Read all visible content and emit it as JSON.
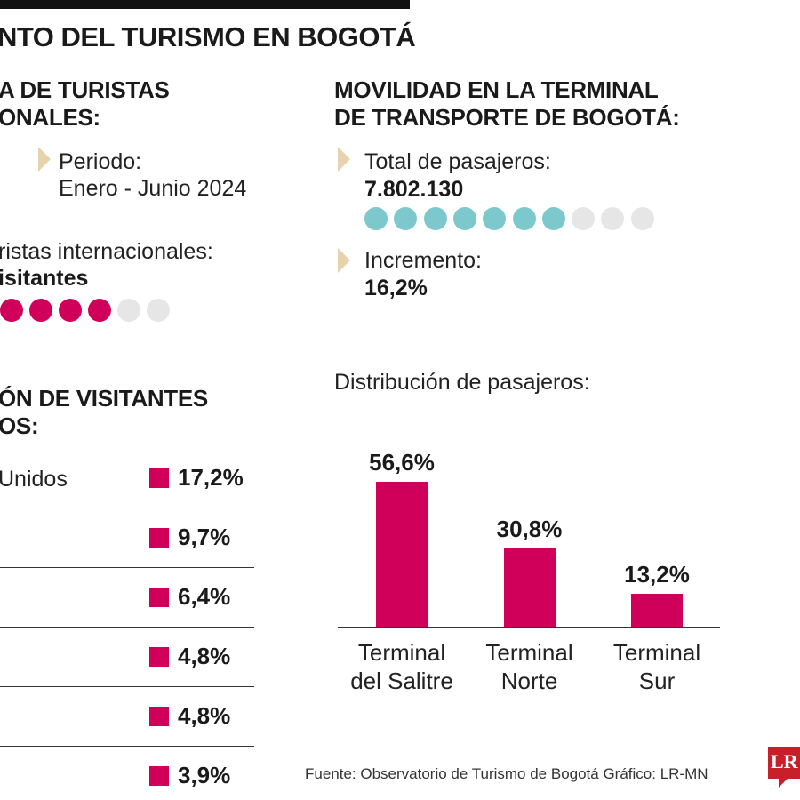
{
  "title": "NTO DEL TURISMO EN BOGOTÁ",
  "left_section": {
    "heading_line1": "A DE TURISTAS",
    "heading_line2": "ONALES:",
    "period_label": "Periodo:",
    "period_value": "Enero - Junio 2024",
    "tourists_label": "ristas internacionales:",
    "tourists_value": "isitantes",
    "dots_filled": 4,
    "dots_total": 6
  },
  "right_section": {
    "heading_line1": "MOVILIDAD EN LA TERMINAL",
    "heading_line2": "DE TRANSPORTE DE BOGOTÁ:",
    "passengers_label": "Total de pasajeros:",
    "passengers_value": "7.802.130",
    "dots_filled": 7,
    "dots_total": 10,
    "increase_label": "Incremento:",
    "increase_value": "16,2%"
  },
  "origin_section": {
    "heading_line1": "ÓN DE VISITANTES",
    "heading_line2": "OS:",
    "rows": [
      {
        "country": "Unidos",
        "value": "17,2%"
      },
      {
        "country": "",
        "value": "9,7%"
      },
      {
        "country": "",
        "value": "6,4%"
      },
      {
        "country": "",
        "value": "4,8%"
      },
      {
        "country": "",
        "value": "4,8%"
      },
      {
        "country": "",
        "value": "3,9%"
      }
    ]
  },
  "chart_data": {
    "type": "bar",
    "title": "Distribución de pasajeros:",
    "categories": [
      "Terminal del Salitre",
      "Terminal Norte",
      "Terminal Sur"
    ],
    "values": [
      56.6,
      30.8,
      13.2
    ],
    "value_labels": [
      "56,6%",
      "30,8%",
      "13,2%"
    ],
    "ylim": [
      0,
      60
    ],
    "color": "#d0005a"
  },
  "colors": {
    "accent": "#d0005a",
    "teal": "#7cc8cc",
    "empty": "#e6e6e6",
    "marker": "#e6d3ae"
  },
  "footer": {
    "source": "Fuente: Observatorio de Turismo de Bogotá  Gráfico: LR-MN",
    "logo": "LR"
  }
}
